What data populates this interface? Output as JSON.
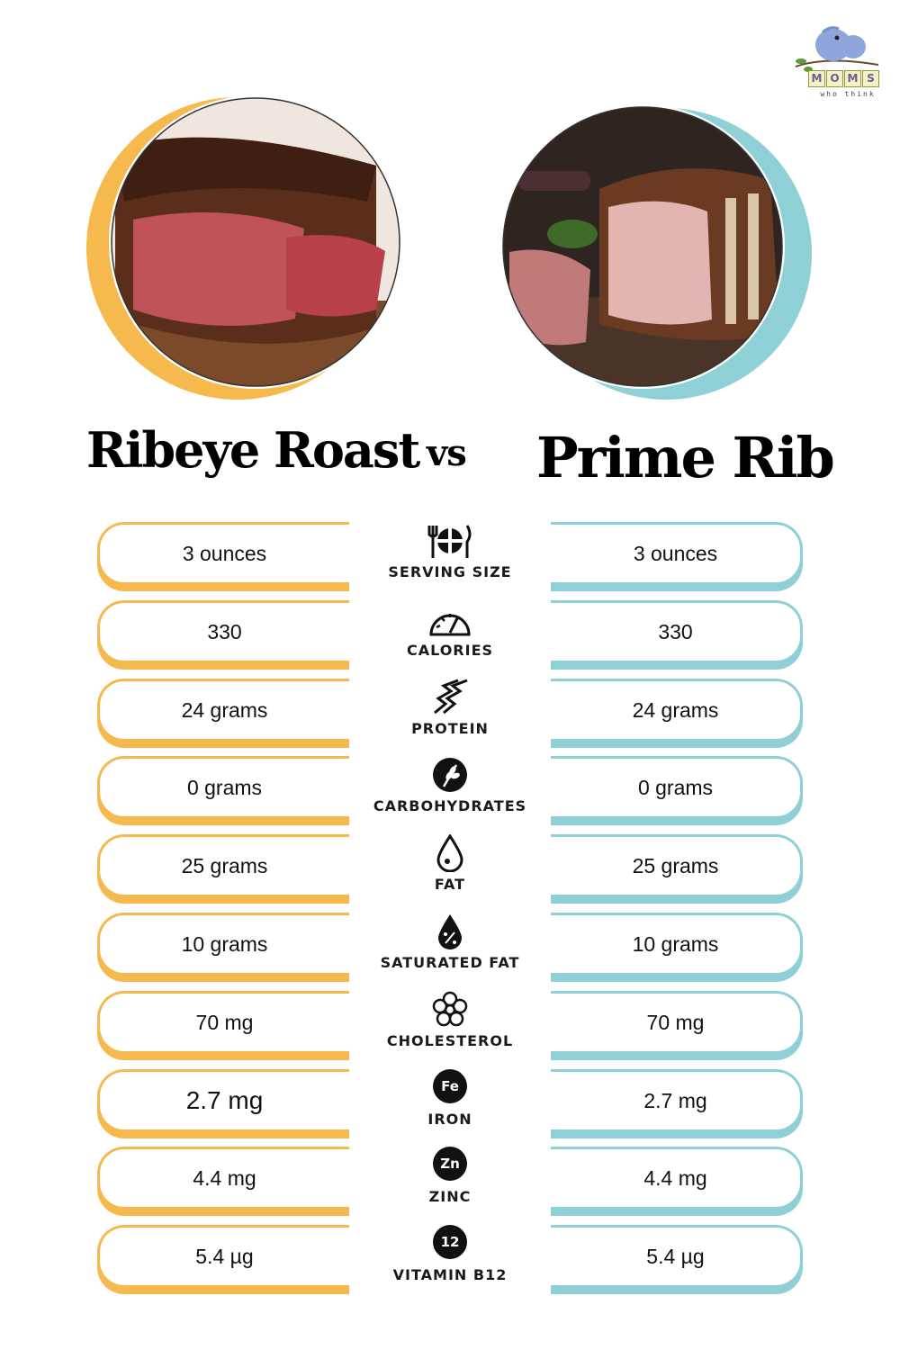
{
  "logo": {
    "letters": [
      "M",
      "O",
      "M",
      "S"
    ],
    "tagline": "who think"
  },
  "titles": {
    "left": "Ribeye Roast",
    "vs": "vs",
    "right": "Prime Rib"
  },
  "colors": {
    "left_accent": "#f6b94e",
    "right_accent": "#8fd0d6"
  },
  "rows": [
    {
      "label": "SERVING SIZE",
      "icon": "fork-plate-knife-icon",
      "left": "3 ounces",
      "right": "3 ounces"
    },
    {
      "label": "CALORIES",
      "icon": "gauge-icon",
      "left": "330",
      "right": "330"
    },
    {
      "label": "PROTEIN",
      "icon": "protein-chain-icon",
      "left": "24 grams",
      "right": "24 grams"
    },
    {
      "label": "CARBOHYDRATES",
      "icon": "wheat-icon",
      "left": "0 grams",
      "right": "0 grams"
    },
    {
      "label": "FAT",
      "icon": "droplet-icon",
      "left": "25 grams",
      "right": "25 grams"
    },
    {
      "label": "SATURATED FAT",
      "icon": "droplet-percent-icon",
      "left": "10 grams",
      "right": "10 grams"
    },
    {
      "label": "CHOLESTEROL",
      "icon": "flower-molecule-icon",
      "left": "70 mg",
      "right": "70 mg"
    },
    {
      "label": "IRON",
      "icon": "fe-badge-icon",
      "badge": "Fe",
      "left": "2.7 mg",
      "right": "2.7 mg"
    },
    {
      "label": "ZINC",
      "icon": "zn-badge-icon",
      "badge": "Zn",
      "left": "4.4 mg",
      "right": "4.4 mg"
    },
    {
      "label": "VITAMIN B12",
      "icon": "b12-badge-icon",
      "badge": "12",
      "left": "5.4 µg",
      "right": "5.4 µg"
    }
  ]
}
